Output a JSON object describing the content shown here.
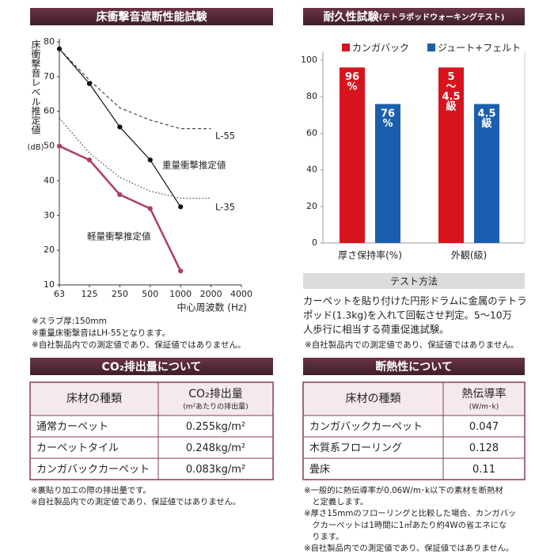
{
  "chart_data": [
    {
      "type": "line",
      "title": "床衝撃音遮断性能試験",
      "ylabel": "床衝撃音レベル推定値",
      "yunit": "(dB)",
      "xlabel": "中心周波数 (Hz)",
      "x": [
        63,
        125,
        250,
        500,
        1000,
        2000,
        4000
      ],
      "xlim": [
        63,
        4000
      ],
      "xticks": [
        63,
        125,
        250,
        500,
        1000,
        2000,
        4000
      ],
      "xlog": true,
      "ylim": [
        10,
        80
      ],
      "yticks": [
        10,
        20,
        30,
        40,
        50,
        60,
        70,
        80
      ],
      "series": [
        {
          "name": "重量衝撃推定値",
          "color": "#111111",
          "dash": "solid",
          "markers": true,
          "values": [
            78,
            68,
            55.5,
            46,
            32.5,
            null,
            null
          ]
        },
        {
          "name": "軽量衝撃推定値",
          "color": "#b03a6a",
          "dash": "solid",
          "markers": true,
          "values": [
            50,
            46,
            36,
            32,
            14,
            null,
            null
          ]
        },
        {
          "name": "L-55",
          "color": "#222222",
          "dash": "dashed",
          "markers": false,
          "values": [
            78,
            69,
            61,
            57.5,
            55,
            55,
            null
          ]
        },
        {
          "name": "L-35",
          "color": "#222222",
          "dash": "dotted",
          "markers": false,
          "values": [
            58,
            48,
            41,
            37,
            35,
            35,
            null
          ]
        }
      ],
      "notes": [
        "※スラブ厚:150mm",
        "※重量床衝撃音はLH-55となります。",
        "※自社製品内での測定値であり、保証値ではありません。"
      ]
    },
    {
      "type": "bar",
      "title": "耐久性試験",
      "subtitle": "(テトラポッドウォーキングテスト)",
      "categories": [
        "厚さ保持率(%)",
        "外観(級)"
      ],
      "ylim": [
        0,
        100
      ],
      "yticks": [
        0,
        20,
        40,
        60,
        80,
        100
      ],
      "series": [
        {
          "name": "カンガバック",
          "color": "#d7141e",
          "values": [
            96,
            96
          ],
          "value_labels": [
            [
              "96",
              "%"
            ],
            [
              "5",
              "〜",
              "4.5",
              "級"
            ]
          ]
        },
        {
          "name": "ジュート+フェルト",
          "color": "#1a5fae",
          "values": [
            76,
            76
          ],
          "value_labels": [
            [
              "76",
              "%"
            ],
            [
              "4.5",
              "級"
            ]
          ]
        }
      ]
    }
  ],
  "test_method": {
    "title": "テスト方法",
    "lines": [
      "カーペットを貼り付けた円形ドラムに金属のテトラ",
      "ポッド(1.3kg)を入れて回転させ判定。5〜10万",
      "人歩行に相当する荷重促進試験。"
    ],
    "note": "※自社製品内での測定値であり、保証値ではありません。"
  },
  "co2": {
    "title": "CO₂排出量について",
    "headers": [
      {
        "label": "床材の種類"
      },
      {
        "label": "CO₂排出量",
        "sub": "(m²あたりの排出量)"
      }
    ],
    "rows": [
      [
        "通常カーペット",
        "0.255kg/m²"
      ],
      [
        "カーペットタイル",
        "0.248kg/m²"
      ],
      [
        "カンガバックカーペット",
        "0.083kg/m²"
      ]
    ],
    "notes": [
      "※裏貼り加工の際の排出量です。",
      "※自社製品内での測定値であり、保証値ではありません。"
    ]
  },
  "insulation": {
    "title": "断熱性について",
    "headers": [
      {
        "label": "床材の種類"
      },
      {
        "label": "熱伝導率",
        "sub": "(W/m･k)"
      }
    ],
    "rows": [
      [
        "カンガバックカーペット",
        "0.047"
      ],
      [
        "木質系フローリング",
        "0.128"
      ],
      [
        "畳床",
        "0.11"
      ]
    ],
    "notes": [
      "※一般的に熱伝導率が0.06W/m･k以下の素材を断熱材",
      "　と定義します。",
      "※厚さ15mmのフローリングと比較した場合、カンガバッ",
      "　クカーペットは1時間に1㎡あたり約4Wの省エネにな",
      "　ります。",
      "※自社製品内での測定値であり、保証値ではありません。"
    ]
  }
}
